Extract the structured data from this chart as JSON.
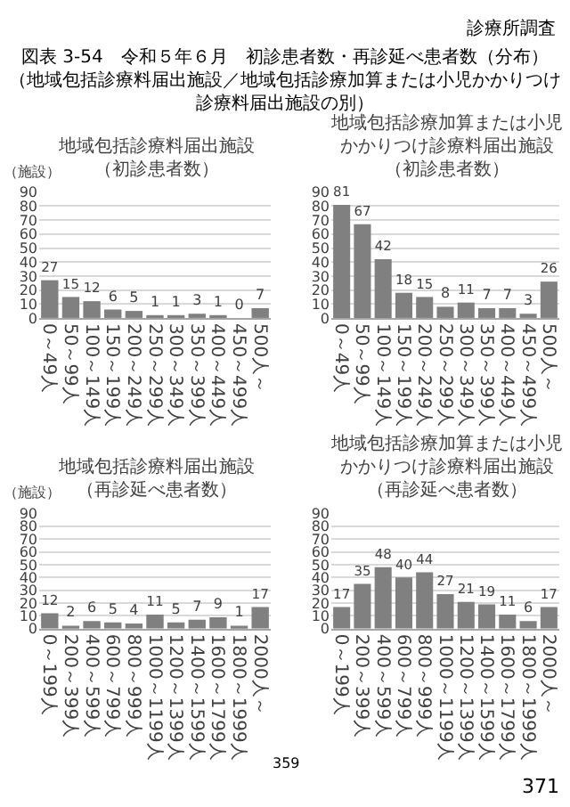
{
  "chart_data": [
    {
      "type": "bar",
      "title": "地域包括診療料届出施設",
      "subtitle": "（初診患者数）",
      "ylabel": "（施設）",
      "annotations": [
        "診療所調査",
        "図表 3-54　令和５年６月　初診患者数・再診延べ患者数（分布）",
        "（地域包括診療料届出施設／地域包括診療加算または小児かかりつけ診療料届出施設の別）",
        "359",
        "371"
      ],
      "categories": [
        "0～49人",
        "50～99人",
        "100～149人",
        "150～199人",
        "200～249人",
        "250～299人",
        "300～349人",
        "350～399人",
        "400～449人",
        "450～499人",
        "500人～"
      ],
      "values": [
        27,
        15,
        12,
        6,
        5,
        1,
        1,
        3,
        1,
        0,
        7
      ],
      "color": "#808080",
      "ylim": [
        0,
        90
      ],
      "yticks": [
        0,
        10,
        20,
        30,
        40,
        50,
        60,
        70,
        80,
        90
      ],
      "grid": "y",
      "data_labels": true
    },
    {
      "type": "bar",
      "title": "地域包括診療加算または小児かかりつけ診療料届出施設",
      "subtitle": "（初診患者数）",
      "categories": [
        "0～49人",
        "50～99人",
        "100～149人",
        "150～199人",
        "200～249人",
        "250～299人",
        "300～349人",
        "350～399人",
        "400～449人",
        "450～499人",
        "500人～"
      ],
      "values": [
        81,
        67,
        42,
        18,
        15,
        8,
        11,
        7,
        7,
        3,
        26
      ],
      "color": "#808080",
      "ylim": [
        0,
        90
      ],
      "yticks": [
        0,
        10,
        20,
        30,
        40,
        50,
        60,
        70,
        80,
        90
      ],
      "grid": "y",
      "data_labels": true
    },
    {
      "type": "bar",
      "title": "地域包括診療料届出施設",
      "subtitle": "（再診延べ患者数）",
      "ylabel": "（施設）",
      "categories": [
        "0～199人",
        "200～399人",
        "400～599人",
        "600～799人",
        "800～999人",
        "1000～1199人",
        "1200～1399人",
        "1400～1599人",
        "1600～1799人",
        "1800～1999人",
        "2000人～"
      ],
      "values": [
        12,
        2,
        6,
        5,
        4,
        11,
        5,
        7,
        9,
        1,
        17
      ],
      "color": "#808080",
      "ylim": [
        0,
        90
      ],
      "yticks": [
        0,
        10,
        20,
        30,
        40,
        50,
        60,
        70,
        80,
        90
      ],
      "grid": "y",
      "data_labels": true
    },
    {
      "type": "bar",
      "title": "地域包括診療加算または小児かかりつけ診療料届出施設",
      "subtitle": "（再診延べ患者数）",
      "categories": [
        "0～199人",
        "200～399人",
        "400～599人",
        "600～799人",
        "800～999人",
        "1000～1199人",
        "1200～1399人",
        "1400～1599人",
        "1600～1799人",
        "1800～1999人",
        "2000人～"
      ],
      "values": [
        17,
        35,
        48,
        40,
        44,
        27,
        21,
        19,
        11,
        6,
        17
      ],
      "color": "#808080",
      "ylim": [
        0,
        90
      ],
      "yticks": [
        0,
        10,
        20,
        30,
        40,
        50,
        60,
        70,
        80,
        90
      ],
      "grid": "y",
      "data_labels": true
    }
  ]
}
